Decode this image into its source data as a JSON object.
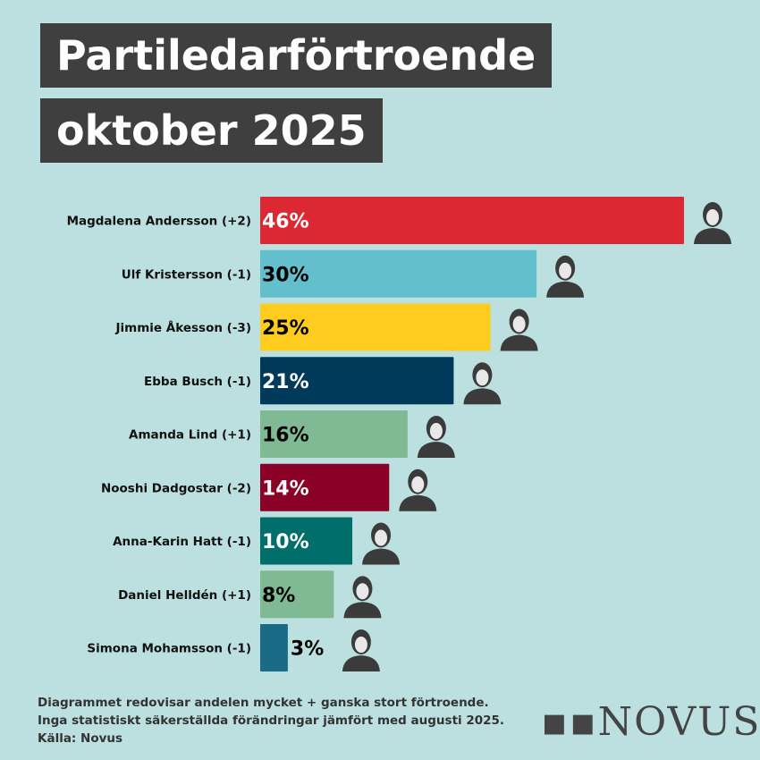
{
  "title_lines": [
    "Partiledarförtroende",
    "oktober 2025"
  ],
  "chart_data": {
    "type": "bar",
    "orientation": "horizontal",
    "title": "Partiledarförtroende oktober 2025",
    "categories": [
      "Magdalena Andersson (+2)",
      "Ulf Kristersson (-1)",
      "Jimmie Åkesson (-3)",
      "Ebba Busch (-1)",
      "Amanda Lind (+1)",
      "Nooshi Dadgostar (-2)",
      "Anna-Karin Hatt (-1)",
      "Daniel Helldén (+1)",
      "Simona Mohamsson (-1)"
    ],
    "values": [
      46,
      30,
      25,
      21,
      16,
      14,
      10,
      8,
      3
    ],
    "data_labels": [
      "46%",
      "30%",
      "25%",
      "21%",
      "16%",
      "14%",
      "10%",
      "8%",
      "3%"
    ],
    "colors": [
      "#dc2833",
      "#62bfcb",
      "#fecc1f",
      "#003a5a",
      "#80ba94",
      "#8a0027",
      "#006e6b",
      "#80ba94",
      "#1a6b86"
    ],
    "label_colors": [
      "#ffffff",
      "#000000",
      "#000000",
      "#ffffff",
      "#000000",
      "#ffffff",
      "#ffffff",
      "#000000",
      "#000000"
    ],
    "xlim": [
      0,
      46
    ],
    "grid": false,
    "legend": "none"
  },
  "footer": {
    "lines": [
      "Diagrammet redovisar andelen mycket + ganska stort förtroende.",
      "Inga statistiskt säkerställda förändringar jämfört med augusti 2025.",
      "Källa: Novus"
    ]
  },
  "logo_text": "novus",
  "colors": {
    "background": "#bce0e0",
    "title_bg": "#3f3f3f"
  }
}
